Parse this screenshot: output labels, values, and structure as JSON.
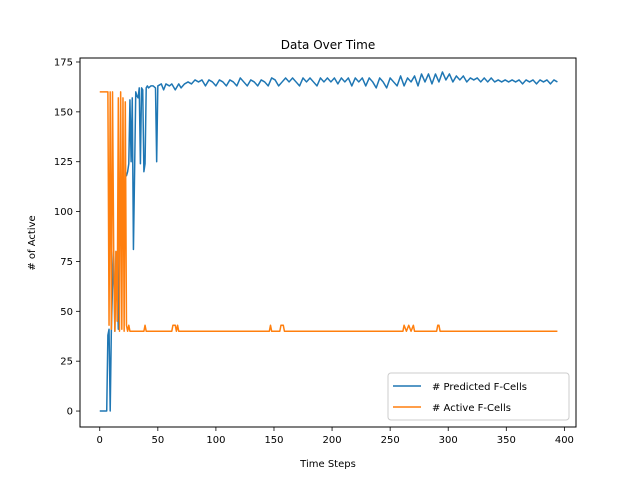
{
  "chart_data": {
    "type": "line",
    "title": "Data Over Time",
    "xlabel": "Time Steps",
    "ylabel": "# of Active",
    "xlim": [
      -17,
      410
    ],
    "ylim": [
      -8,
      177
    ],
    "xticks": [
      0,
      50,
      100,
      150,
      200,
      250,
      300,
      350,
      400
    ],
    "yticks": [
      0,
      25,
      50,
      75,
      100,
      125,
      150,
      175
    ],
    "legend_position": "lower-right",
    "grid": false,
    "series": [
      {
        "name": "# Predicted F-Cells",
        "color": "#1f77b4",
        "points": [
          [
            0,
            0
          ],
          [
            4,
            0
          ],
          [
            6,
            0
          ],
          [
            7,
            38
          ],
          [
            8,
            41
          ],
          [
            9,
            0
          ],
          [
            10,
            41
          ],
          [
            11,
            62
          ],
          [
            12,
            80
          ],
          [
            13,
            40
          ],
          [
            14,
            80
          ],
          [
            15,
            62
          ],
          [
            16,
            41
          ],
          [
            17,
            116
          ],
          [
            18,
            85
          ],
          [
            19,
            117
          ],
          [
            20,
            115
          ],
          [
            21,
            85
          ],
          [
            22,
            119
          ],
          [
            23,
            118
          ],
          [
            24,
            120
          ],
          [
            25,
            124
          ],
          [
            26,
            156
          ],
          [
            27,
            125
          ],
          [
            28,
            157
          ],
          [
            29,
            81
          ],
          [
            30,
            120
          ],
          [
            31,
            160
          ],
          [
            32,
            158
          ],
          [
            33,
            157
          ],
          [
            34,
            162
          ],
          [
            35,
            124
          ],
          [
            36,
            162
          ],
          [
            37,
            161
          ],
          [
            38,
            120
          ],
          [
            39,
            124
          ],
          [
            40,
            162
          ],
          [
            41,
            163
          ],
          [
            42,
            162
          ],
          [
            44,
            163
          ],
          [
            46,
            163
          ],
          [
            48,
            162
          ],
          [
            49,
            125
          ],
          [
            50,
            163
          ],
          [
            53,
            164
          ],
          [
            55,
            161
          ],
          [
            57,
            164
          ],
          [
            60,
            163
          ],
          [
            62,
            164
          ],
          [
            65,
            161
          ],
          [
            68,
            164
          ],
          [
            70,
            162
          ],
          [
            73,
            164
          ],
          [
            76,
            165
          ],
          [
            79,
            164
          ],
          [
            82,
            166
          ],
          [
            85,
            165
          ],
          [
            88,
            166
          ],
          [
            91,
            163
          ],
          [
            94,
            166
          ],
          [
            97,
            165
          ],
          [
            100,
            163
          ],
          [
            103,
            166
          ],
          [
            106,
            165
          ],
          [
            109,
            163
          ],
          [
            112,
            166
          ],
          [
            115,
            165
          ],
          [
            118,
            163
          ],
          [
            121,
            167
          ],
          [
            124,
            165
          ],
          [
            127,
            163
          ],
          [
            130,
            166
          ],
          [
            133,
            165
          ],
          [
            136,
            163
          ],
          [
            139,
            166
          ],
          [
            142,
            165
          ],
          [
            145,
            163
          ],
          [
            148,
            167
          ],
          [
            151,
            166
          ],
          [
            154,
            163
          ],
          [
            157,
            165
          ],
          [
            160,
            167
          ],
          [
            163,
            165
          ],
          [
            166,
            167
          ],
          [
            169,
            165
          ],
          [
            172,
            163
          ],
          [
            175,
            167
          ],
          [
            178,
            165
          ],
          [
            181,
            167
          ],
          [
            184,
            165
          ],
          [
            187,
            163
          ],
          [
            190,
            167
          ],
          [
            193,
            165
          ],
          [
            196,
            167
          ],
          [
            199,
            165
          ],
          [
            202,
            167
          ],
          [
            205,
            164
          ],
          [
            208,
            167
          ],
          [
            211,
            165
          ],
          [
            214,
            167
          ],
          [
            217,
            163
          ],
          [
            220,
            167
          ],
          [
            223,
            165
          ],
          [
            226,
            167
          ],
          [
            229,
            163
          ],
          [
            232,
            167
          ],
          [
            235,
            165
          ],
          [
            238,
            162
          ],
          [
            241,
            167
          ],
          [
            244,
            165
          ],
          [
            247,
            162
          ],
          [
            250,
            167
          ],
          [
            253,
            165
          ],
          [
            256,
            163
          ],
          [
            259,
            168
          ],
          [
            262,
            163
          ],
          [
            265,
            167
          ],
          [
            268,
            165
          ],
          [
            271,
            168
          ],
          [
            274,
            163
          ],
          [
            277,
            169
          ],
          [
            280,
            165
          ],
          [
            283,
            169
          ],
          [
            286,
            164
          ],
          [
            289,
            169
          ],
          [
            292,
            165
          ],
          [
            295,
            170
          ],
          [
            298,
            166
          ],
          [
            301,
            169
          ],
          [
            304,
            165
          ],
          [
            307,
            168
          ],
          [
            310,
            166
          ],
          [
            313,
            168
          ],
          [
            316,
            165
          ],
          [
            319,
            167
          ],
          [
            322,
            166
          ],
          [
            325,
            167
          ],
          [
            328,
            165
          ],
          [
            331,
            167
          ],
          [
            334,
            165
          ],
          [
            337,
            167
          ],
          [
            340,
            165
          ],
          [
            343,
            166
          ],
          [
            346,
            165
          ],
          [
            349,
            166
          ],
          [
            352,
            165
          ],
          [
            355,
            166
          ],
          [
            358,
            165
          ],
          [
            361,
            166
          ],
          [
            364,
            164
          ],
          [
            367,
            166
          ],
          [
            370,
            165
          ],
          [
            373,
            166
          ],
          [
            376,
            164
          ],
          [
            379,
            166
          ],
          [
            382,
            165
          ],
          [
            385,
            166
          ],
          [
            388,
            164
          ],
          [
            391,
            166
          ],
          [
            394,
            165
          ]
        ]
      },
      {
        "name": "# Active F-Cells",
        "color": "#ff7f0e",
        "points": [
          [
            0,
            160
          ],
          [
            7,
            160
          ],
          [
            8,
            43
          ],
          [
            9,
            160
          ],
          [
            10,
            41
          ],
          [
            11,
            160
          ],
          [
            12,
            81
          ],
          [
            13,
            40
          ],
          [
            14,
            80
          ],
          [
            15,
            45
          ],
          [
            16,
            157
          ],
          [
            17,
            40
          ],
          [
            18,
            160
          ],
          [
            19,
            41
          ],
          [
            20,
            157
          ],
          [
            21,
            40
          ],
          [
            22,
            155
          ],
          [
            23,
            43
          ],
          [
            24,
            40
          ],
          [
            25,
            43
          ],
          [
            26,
            40
          ],
          [
            38,
            40
          ],
          [
            39,
            43
          ],
          [
            40,
            40
          ],
          [
            62,
            40
          ],
          [
            63,
            43
          ],
          [
            65,
            43
          ],
          [
            66,
            40
          ],
          [
            67,
            43
          ],
          [
            68,
            40
          ],
          [
            146,
            40
          ],
          [
            147,
            43
          ],
          [
            148,
            40
          ],
          [
            155,
            40
          ],
          [
            156,
            43
          ],
          [
            158,
            43
          ],
          [
            159,
            40
          ],
          [
            261,
            40
          ],
          [
            262,
            43
          ],
          [
            264,
            40
          ],
          [
            266,
            43
          ],
          [
            268,
            40
          ],
          [
            270,
            43
          ],
          [
            271,
            40
          ],
          [
            290,
            40
          ],
          [
            291,
            43
          ],
          [
            292,
            43
          ],
          [
            293,
            40
          ],
          [
            394,
            40
          ]
        ]
      }
    ]
  }
}
